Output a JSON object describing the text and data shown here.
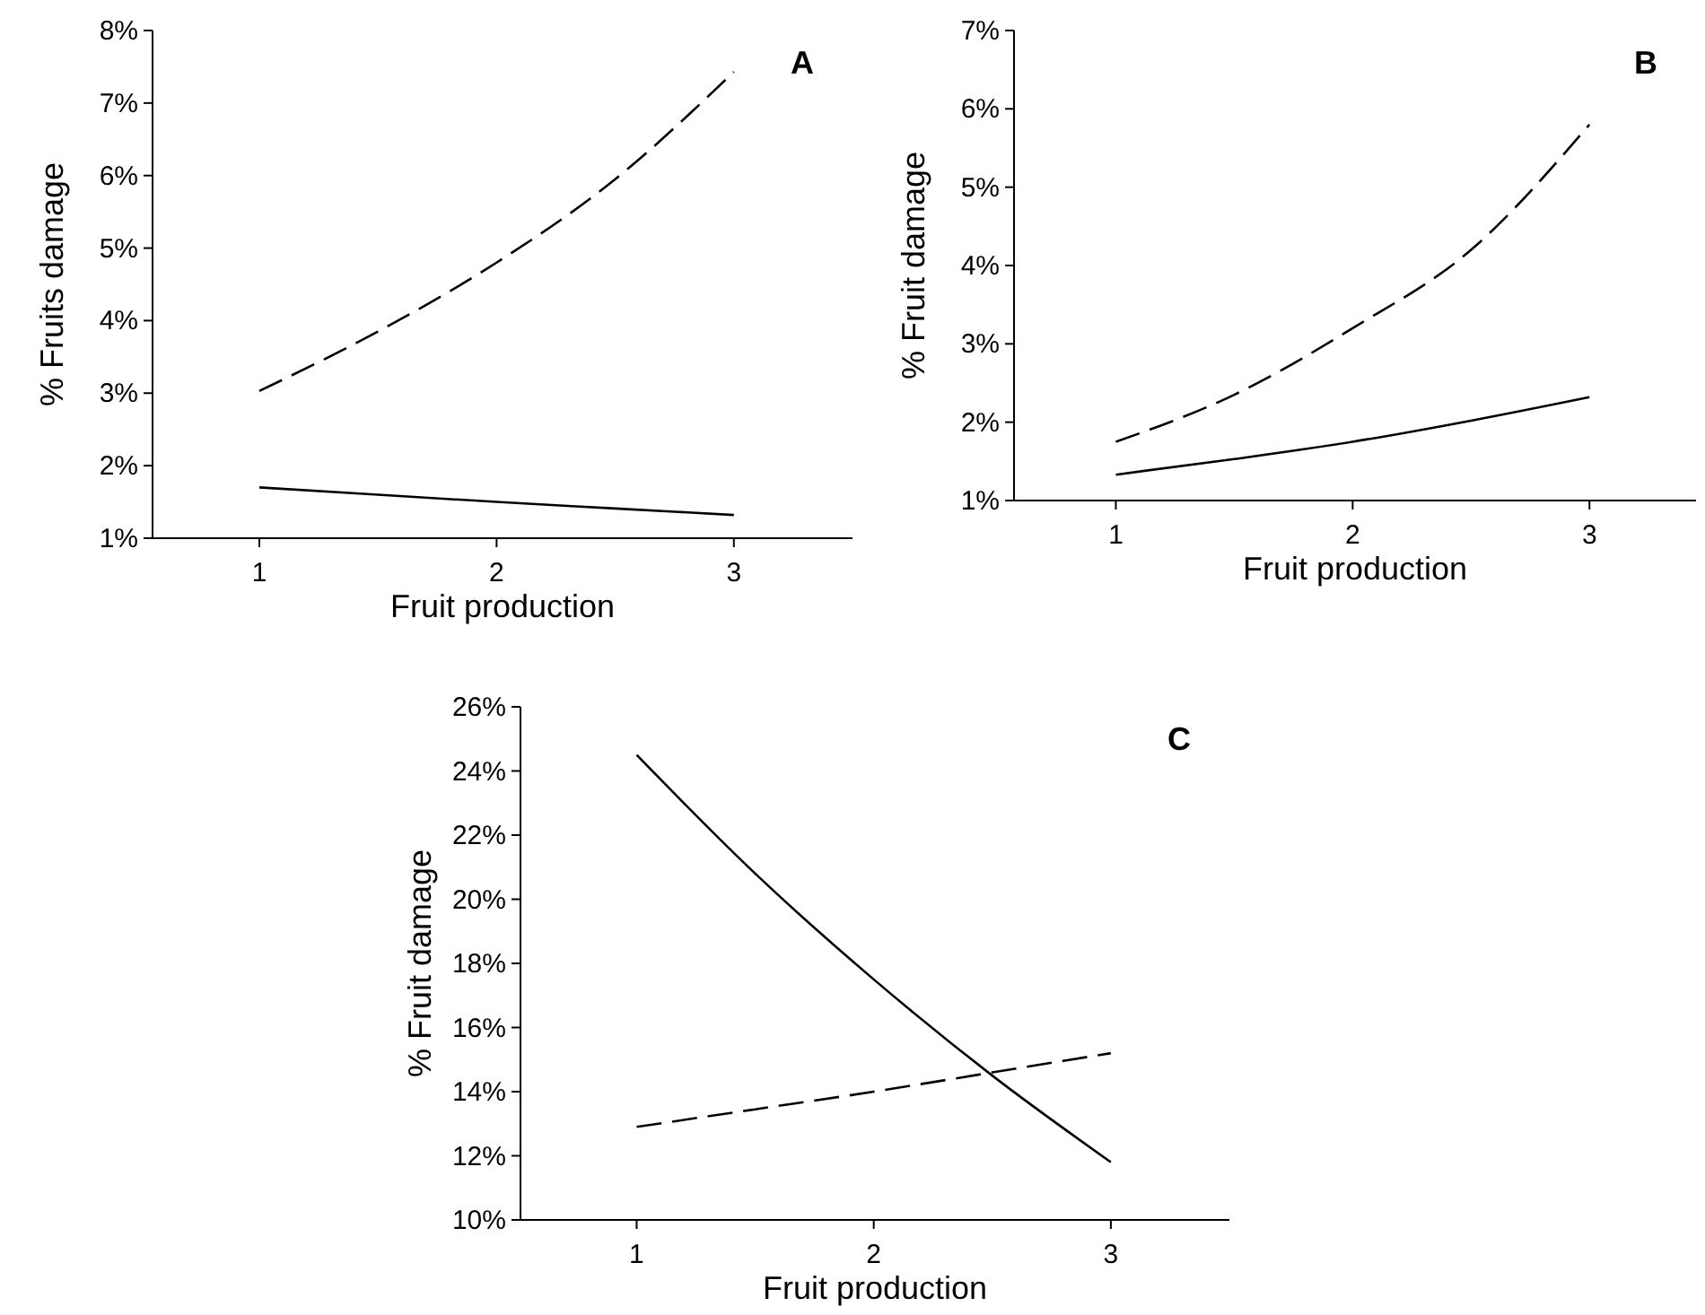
{
  "chart_data": [
    {
      "type": "line",
      "title": "A",
      "xlabel": "Fruit production",
      "ylabel": "% Fruits damage",
      "x": [
        1,
        1.5,
        2,
        2.5,
        3
      ],
      "xlim": [
        0.55,
        3.5
      ],
      "xticks": [
        1,
        2,
        3
      ],
      "ylim": [
        1,
        8
      ],
      "yticks": [
        {
          "value": 1,
          "label": "1%"
        },
        {
          "value": 2,
          "label": "2%"
        },
        {
          "value": 3,
          "label": "3%"
        },
        {
          "value": 4,
          "label": "4%"
        },
        {
          "value": 5,
          "label": "5%"
        },
        {
          "value": 6,
          "label": "6%"
        },
        {
          "value": 7,
          "label": "7%"
        },
        {
          "value": 8,
          "label": "8%"
        }
      ],
      "grid": false,
      "marker": "none",
      "series": [
        {
          "color": "#000000",
          "line_style": "dashed",
          "values": [
            3.03,
            3.85,
            4.8,
            5.95,
            7.43
          ]
        },
        {
          "color": "#000000",
          "line_style": "solid",
          "values": [
            1.7,
            1.6,
            1.5,
            1.41,
            1.32
          ]
        }
      ]
    },
    {
      "type": "line",
      "title": "B",
      "xlabel": "Fruit production",
      "ylabel": "% Fruit damage",
      "x": [
        1,
        1.5,
        2,
        2.5,
        3
      ],
      "xlim": [
        0.57,
        3.45
      ],
      "xticks": [
        1,
        2,
        3
      ],
      "ylim": [
        1,
        7
      ],
      "yticks": [
        {
          "value": 1,
          "label": "1%"
        },
        {
          "value": 2,
          "label": "2%"
        },
        {
          "value": 3,
          "label": "3%"
        },
        {
          "value": 4,
          "label": "4%"
        },
        {
          "value": 5,
          "label": "5%"
        },
        {
          "value": 6,
          "label": "6%"
        },
        {
          "value": 7,
          "label": "7%"
        }
      ],
      "grid": false,
      "marker": "none",
      "series": [
        {
          "color": "#000000",
          "line_style": "dashed",
          "values": [
            1.75,
            2.35,
            3.2,
            4.2,
            5.8
          ]
        },
        {
          "color": "#000000",
          "line_style": "solid",
          "values": [
            1.33,
            1.53,
            1.75,
            2.02,
            2.32
          ]
        }
      ]
    },
    {
      "type": "line",
      "title": "C",
      "xlabel": "Fruit production",
      "ylabel": "% Fruit damage",
      "x": [
        1,
        1.5,
        2,
        2.5,
        3
      ],
      "xlim": [
        0.51,
        3.5
      ],
      "xticks": [
        1,
        2,
        3
      ],
      "ylim": [
        10,
        26
      ],
      "yticks": [
        {
          "value": 10,
          "label": "10%"
        },
        {
          "value": 12,
          "label": "12%"
        },
        {
          "value": 14,
          "label": "14%"
        },
        {
          "value": 16,
          "label": "16%"
        },
        {
          "value": 18,
          "label": "18%"
        },
        {
          "value": 20,
          "label": "20%"
        },
        {
          "value": 22,
          "label": "22%"
        },
        {
          "value": 24,
          "label": "24%"
        },
        {
          "value": 26,
          "label": "26%"
        }
      ],
      "grid": false,
      "marker": "none",
      "series": [
        {
          "color": "#000000",
          "line_style": "solid",
          "values": [
            24.5,
            20.8,
            17.5,
            14.5,
            11.8
          ]
        },
        {
          "color": "#000000",
          "line_style": "dashed",
          "values": [
            12.9,
            13.45,
            14.0,
            14.6,
            15.2
          ]
        }
      ]
    }
  ]
}
